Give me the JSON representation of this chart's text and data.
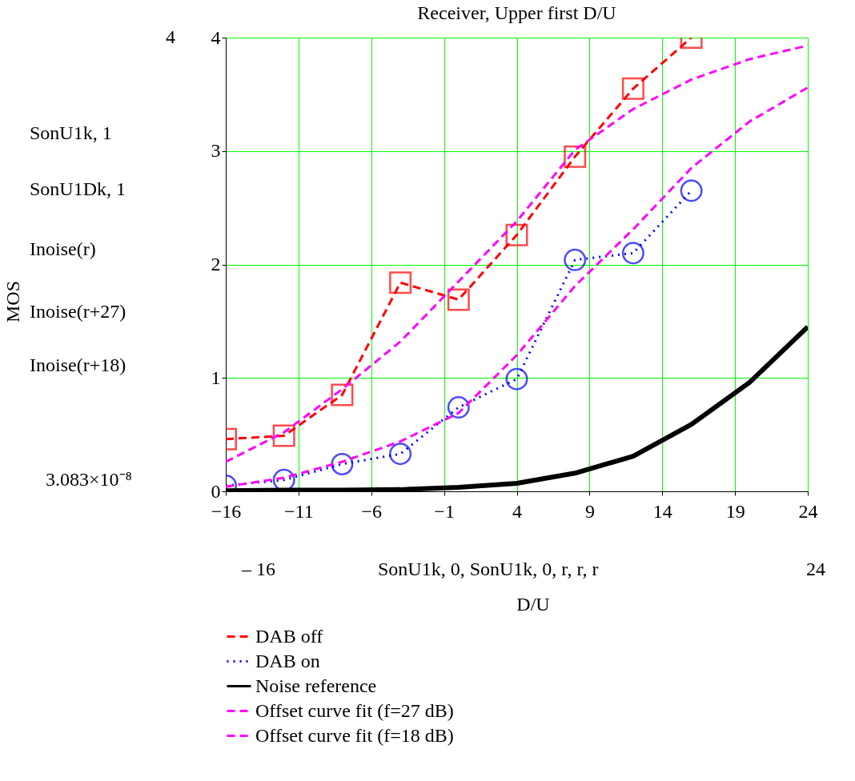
{
  "chart_data": {
    "type": "line",
    "title": "Receiver, Upper first D/U",
    "xlabel": "D/U",
    "xlim": [
      -16,
      24
    ],
    "xticks": [
      -16,
      -11,
      -6,
      -1,
      4,
      9,
      14,
      19,
      24
    ],
    "ylim": [
      0,
      4
    ],
    "yticks": [
      0,
      1,
      2,
      3,
      4
    ],
    "grid": true,
    "legend": "bottom",
    "series": [
      {
        "name": "DAB off",
        "color": "#ff0000",
        "line_style": "dashed",
        "marker": "square",
        "x": [
          -16,
          -12,
          -8,
          -4,
          0,
          4,
          8,
          12,
          16
        ],
        "values": [
          0.46,
          0.49,
          0.85,
          1.84,
          1.69,
          2.26,
          2.95,
          3.55,
          4.0
        ]
      },
      {
        "name": "DAB on",
        "color": "#0000ff",
        "line_style": "dotted",
        "marker": "circle",
        "x": [
          -16,
          -12,
          -8,
          -4,
          0,
          4,
          8,
          12,
          16
        ],
        "values": [
          0.05,
          0.1,
          0.24,
          0.33,
          0.74,
          0.99,
          2.04,
          2.1,
          2.65
        ]
      },
      {
        "name": "Noise reference",
        "color": "#000000",
        "line_style": "solid",
        "marker": "none",
        "x": [
          -16,
          -12,
          -8,
          -4,
          0,
          4,
          8,
          12,
          16,
          20,
          24
        ],
        "values": [
          0.005,
          0.01,
          0.01,
          0.015,
          0.035,
          0.07,
          0.16,
          0.31,
          0.59,
          0.96,
          1.45
        ]
      },
      {
        "name": "Offset curve fit (f=27 dB)",
        "color": "#ff00ff",
        "line_style": "dashed",
        "marker": "none",
        "x": [
          -16,
          -12,
          -8,
          -4,
          0,
          4,
          8,
          12,
          16,
          20,
          24
        ],
        "values": [
          0.26,
          0.52,
          0.9,
          1.32,
          1.85,
          2.38,
          3.01,
          3.37,
          3.63,
          3.81,
          3.93
        ]
      },
      {
        "name": "Offset curve fit (f=18 dB)",
        "color": "#ff00ff",
        "line_style": "dashed",
        "marker": "none",
        "x": [
          -16,
          -12,
          -8,
          -4,
          0,
          4,
          8,
          12,
          16,
          20,
          24
        ],
        "values": [
          0.04,
          0.12,
          0.26,
          0.44,
          0.69,
          1.2,
          1.81,
          2.31,
          2.85,
          3.26,
          3.56
        ]
      }
    ],
    "annotations": [
      "SonU1k, 1",
      "SonU1Dk, 1",
      "Inoise(r)",
      "Inoise(r+27)",
      "Inoise(r+18)",
      "4",
      "3.083×10⁻⁸",
      "– 16",
      "24",
      "SonU1k, 0, SonU1k, 0, r, r, r",
      "MOS"
    ]
  }
}
